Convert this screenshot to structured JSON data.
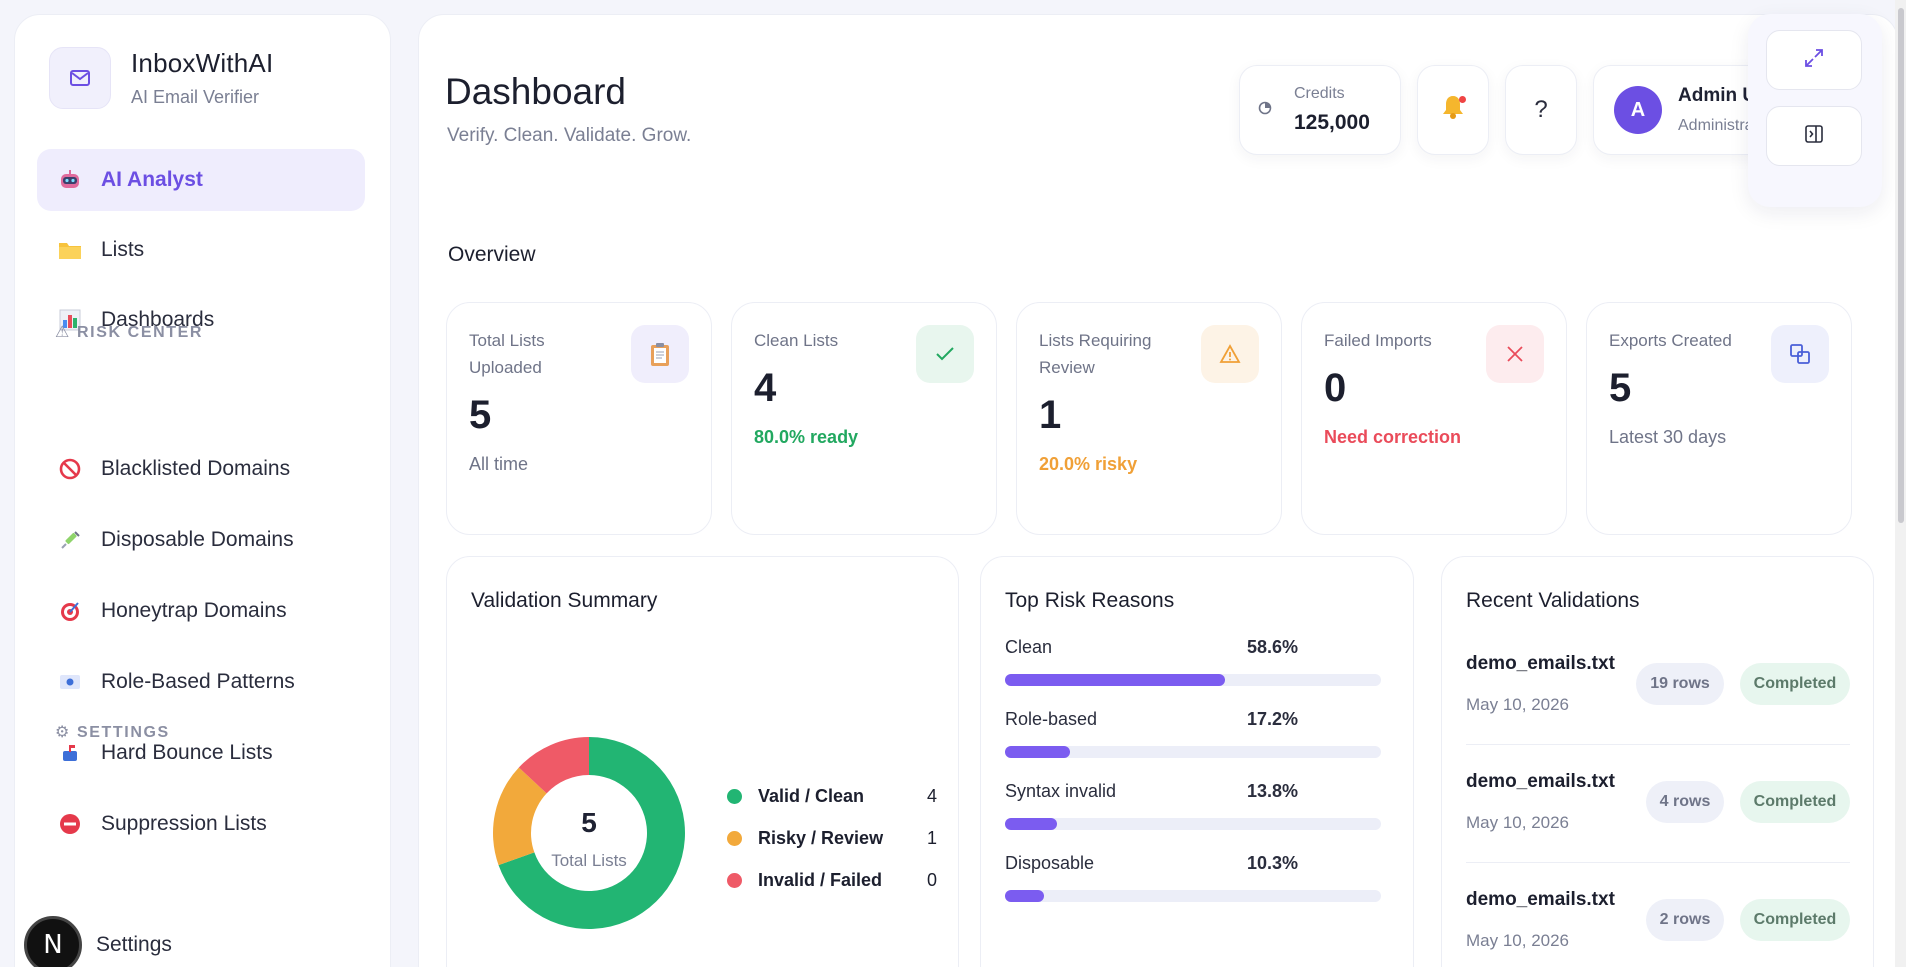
{
  "brand": {
    "name": "InboxWithAI",
    "subtitle": "AI Email Verifier"
  },
  "sidebar": {
    "items": [
      {
        "label": "AI Analyst",
        "icon": "robot-icon",
        "active": true
      },
      {
        "label": "Lists",
        "icon": "folder-icon"
      },
      {
        "label": "Dashboards",
        "icon": "bar-chart-icon"
      }
    ],
    "risk_center_label": "⚠ RISK CENTER",
    "risk_items": [
      {
        "label": "Blacklisted Domains",
        "icon": "prohibited-icon"
      },
      {
        "label": "Disposable Domains",
        "icon": "syringe-icon"
      },
      {
        "label": "Honeytrap Domains",
        "icon": "target-icon"
      },
      {
        "label": "Role-Based Patterns",
        "icon": "id-card-icon"
      },
      {
        "label": "Hard Bounce Lists",
        "icon": "mailbox-icon"
      },
      {
        "label": "Suppression Lists",
        "icon": "no-entry-icon"
      }
    ],
    "settings_section_label": "⚙ SETTINGS",
    "settings_item": "Settings",
    "n_badge": "N"
  },
  "header": {
    "title": "Dashboard",
    "subtitle": "Verify. Clean. Validate. Grow.",
    "credits_label": "Credits",
    "credits_value": "125,000",
    "help_label": "?",
    "avatar_initial": "A",
    "admin_name": "Admin User",
    "admin_role": "Administrator"
  },
  "overview_label": "Overview",
  "stats": [
    {
      "label": "Total Lists Uploaded",
      "value": "5",
      "foot": "All time",
      "foot_color": "#6f7488",
      "icon": "clipboard-icon",
      "icon_bg": "#f0eefc"
    },
    {
      "label": "Clean Lists",
      "value": "4",
      "foot": "80.0% ready",
      "foot_color": "#22a860",
      "icon": "check-icon",
      "icon_bg": "#e8f6ee"
    },
    {
      "label": "Lists Requiring Review",
      "value": "1",
      "foot": "20.0% risky",
      "foot_color": "#f0a037",
      "icon": "warning-icon",
      "icon_bg": "#fdf3e6"
    },
    {
      "label": "Failed Imports",
      "value": "0",
      "foot": "Need correction",
      "foot_color": "#ea4b5a",
      "icon": "x-icon",
      "icon_bg": "#fdecee"
    },
    {
      "label": "Exports Created",
      "value": "5",
      "foot": "Latest 30 days",
      "foot_color": "#6f7488",
      "icon": "export-icon",
      "icon_bg": "#eef0fc"
    }
  ],
  "validation_summary": {
    "title": "Validation Summary",
    "center_value": "5",
    "center_label": "Total Lists",
    "legend": [
      {
        "label": "Valid / Clean",
        "value": "4",
        "color": "#22b573"
      },
      {
        "label": "Risky / Review",
        "value": "1",
        "color": "#f2a93b"
      },
      {
        "label": "Invalid / Failed",
        "value": "0",
        "color": "#ef5a67"
      }
    ]
  },
  "chart_data": {
    "type": "pie",
    "categories": [
      "Valid / Clean",
      "Risky / Review",
      "Invalid / Failed"
    ],
    "values": [
      4,
      1,
      0
    ],
    "center_value": "5",
    "center_label": "Total Lists"
  },
  "top_risk": {
    "title": "Top Risk Reasons",
    "rows": [
      {
        "label": "Clean",
        "pct": "58.6%",
        "value": 58.6
      },
      {
        "label": "Role-based",
        "pct": "17.2%",
        "value": 17.2
      },
      {
        "label": "Syntax invalid",
        "pct": "13.8%",
        "value": 13.8
      },
      {
        "label": "Disposable",
        "pct": "10.3%",
        "value": 10.3
      }
    ]
  },
  "recent": {
    "title": "Recent Validations",
    "items": [
      {
        "name": "demo_emails.txt",
        "date": "May 10, 2026",
        "rows": "19 rows",
        "status": "Completed"
      },
      {
        "name": "demo_emails.txt",
        "date": "May 10, 2026",
        "rows": "4 rows",
        "status": "Completed"
      },
      {
        "name": "demo_emails.txt",
        "date": "May 10, 2026",
        "rows": "2 rows",
        "status": "Completed"
      }
    ]
  }
}
